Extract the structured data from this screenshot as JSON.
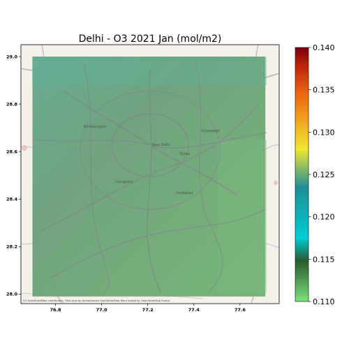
{
  "map": {
    "title": "Delhi - O3 2021 Jan (mol/m2)",
    "attribution": "(C) OpenStreetMap contributors, Tiles style by Humanitarian OpenStreetMap Team hosted by OpenStreetMap France",
    "x_ticks": [
      "76.8",
      "77.0",
      "77.2",
      "77.4",
      "77.6"
    ],
    "y_ticks": [
      "29.0",
      "28.8",
      "28.6",
      "28.4",
      "28.2",
      "28.0"
    ],
    "x_tick_values": [
      76.8,
      77.0,
      77.2,
      77.4,
      77.6
    ],
    "y_tick_values": [
      29.0,
      28.8,
      28.6,
      28.4,
      28.2,
      28.0
    ],
    "lon_range": [
      76.65,
      77.77
    ],
    "lat_range": [
      27.96,
      29.05
    ],
    "data_extent": {
      "lon": [
        76.7,
        77.71
      ],
      "lat": [
        27.99,
        29.0
      ]
    },
    "place_labels": [
      "Bahadurgarh",
      "New Delhi",
      "Noida",
      "Ghaziabad",
      "Gurugram",
      "Faridabad"
    ],
    "base_map_color": "#f4f1ea",
    "overlay_color": "#6aa772"
  },
  "colorbar": {
    "ticks": [
      "0.140",
      "0.135",
      "0.130",
      "0.125",
      "0.120",
      "0.115",
      "0.110"
    ],
    "tick_values": [
      0.14,
      0.135,
      0.13,
      0.125,
      0.12,
      0.115,
      0.11
    ],
    "range": [
      0.11,
      0.14
    ],
    "colormap": [
      "#7be37b",
      "#2a5a2f",
      "#00cdd3",
      "#1f8f96",
      "#f1e531",
      "#f0a020",
      "#ed6510",
      "#c0280a",
      "#7a0010"
    ]
  }
}
